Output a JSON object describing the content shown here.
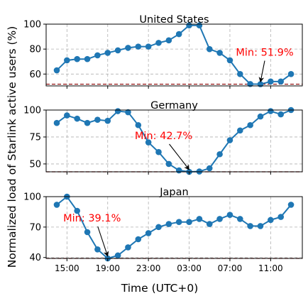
{
  "figure": {
    "ylabel": "Normalized load of Starlink active users (%)",
    "xlabel": "Time (UTC+0)",
    "series_color": "#1f77b4",
    "annotation_color": "#ff0000",
    "grid_color": "#b0b0b0"
  },
  "chart_data": [
    {
      "type": "line",
      "title": "United States",
      "x_tick_labels": [
        "15:00",
        "19:00",
        "23:00",
        "03:00",
        "07:00",
        "11:00"
      ],
      "ylim": [
        50.5,
        100
      ],
      "y_ticks": [
        60,
        80,
        100
      ],
      "grid": true,
      "values": [
        63,
        71,
        72,
        72,
        75,
        77,
        79,
        81,
        82,
        82,
        85,
        87,
        92,
        99,
        99,
        80,
        77,
        71,
        60,
        52,
        51.9,
        54,
        54,
        60
      ],
      "reference_line": 51.9,
      "min_label": "Min: 51.9%",
      "min_index": 20
    },
    {
      "type": "line",
      "title": "Germany",
      "x_tick_labels": [
        "15:00",
        "19:00",
        "23:00",
        "03:00",
        "07:00",
        "11:00"
      ],
      "ylim": [
        42.7,
        100
      ],
      "y_ticks": [
        50,
        75,
        100
      ],
      "grid": true,
      "values": [
        88,
        95,
        92,
        88,
        91,
        90,
        99,
        98,
        86,
        70,
        61,
        50,
        44,
        42.7,
        43,
        46,
        59,
        72,
        81,
        86,
        94,
        99,
        96,
        100
      ],
      "reference_line": 42.7,
      "min_label": "Min: 42.7%",
      "min_index": 13
    },
    {
      "type": "line",
      "title": "Japan",
      "x_tick_labels": [
        "15:00",
        "19:00",
        "23:00",
        "03:00",
        "07:00",
        "11:00"
      ],
      "ylim": [
        39.1,
        100
      ],
      "y_ticks": [
        40,
        70,
        100
      ],
      "grid": true,
      "values": [
        92,
        100,
        86,
        65,
        48,
        39.1,
        42,
        50,
        58,
        64,
        70,
        73,
        75,
        75,
        78,
        73,
        78,
        82,
        78,
        71,
        71,
        77,
        80,
        92
      ],
      "reference_line": 39.1,
      "min_label": "Min: 39.1%",
      "min_index": 5
    }
  ]
}
